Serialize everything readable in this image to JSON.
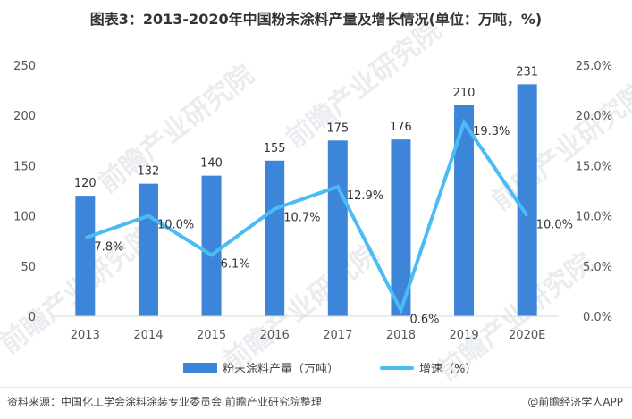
{
  "title": "图表3：2013-2020年中国粉末涂料产量及增长情况(单位：万吨，%)",
  "watermark": "前瞻产业研究院",
  "chart_data": {
    "type": "bar",
    "categories": [
      "2013",
      "2014",
      "2015",
      "2016",
      "2017",
      "2018",
      "2019",
      "2020E"
    ],
    "series": [
      {
        "name": "粉末涂料产量（万吨）",
        "type": "bar",
        "axis": "left",
        "values": [
          120,
          132,
          140,
          155,
          175,
          176,
          210,
          231
        ]
      },
      {
        "name": "增速（%）",
        "type": "line",
        "axis": "right",
        "values": [
          7.8,
          10.0,
          6.1,
          10.7,
          12.9,
          0.6,
          19.3,
          10.0
        ]
      }
    ],
    "bar_labels": [
      "120",
      "132",
      "140",
      "155",
      "175",
      "176",
      "210",
      "231"
    ],
    "line_labels": [
      "7.8%",
      "10.0%",
      "6.1%",
      "10.7%",
      "12.9%",
      "0.6%",
      "19.3%",
      "10.0%"
    ],
    "y_left": {
      "min": 0,
      "max": 250,
      "ticks": [
        "0",
        "50",
        "100",
        "150",
        "200",
        "250"
      ]
    },
    "y_right": {
      "min": 0,
      "max": 25,
      "ticks": [
        "0.0%",
        "5.0%",
        "10.0%",
        "15.0%",
        "20.0%",
        "25.0%"
      ]
    },
    "grid": false,
    "legend_position": "bottom",
    "colors": {
      "bar": "#3d85d8",
      "line": "#4bbcf3"
    }
  },
  "legend": {
    "bar_label": "粉末涂料产量（万吨）",
    "line_label": "增速（%）"
  },
  "footer": {
    "source": "资料来源：中国化工学会涂料涂装专业委员会 前瞻产业研究院整理",
    "brand": "@前瞻经济学人APP"
  }
}
